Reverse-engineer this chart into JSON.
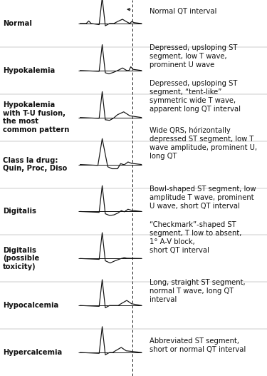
{
  "background_color": "#ffffff",
  "line_color": "#111111",
  "label_fontsize": 7.2,
  "desc_fontsize": 7.2,
  "rows": [
    {
      "label": "Normal",
      "desc_lines": [
        "Depressed, upsloping ST",
        "segment, low T wave,",
        "prominent U wave"
      ],
      "ecg_type": "hypokalemia"
    },
    {
      "label": "Hypokalemia",
      "desc_lines": [
        "Depressed, upsloping ST",
        "segment, “tent-like”",
        "symmetric wide T wave,",
        "apparent long QT interval"
      ],
      "ecg_type": "hypokalemia_tu"
    },
    {
      "label": "Hypokalemia\nwith T-U fusion,\nthe most\ncommon pattern",
      "desc_lines": [
        "Wide QRS, hórizontally",
        "depressed ST segment, low T",
        "wave amplitude, prominent U,",
        "long QT"
      ],
      "ecg_type": "class_ia"
    },
    {
      "label": "Class Ia drug:\nQuin, Proc, Diso",
      "desc_lines": [
        "Bowl-shaped ST segment, low",
        "amplitude T wave, prominent",
        "U wave, short QT interval"
      ],
      "ecg_type": "digitalis"
    },
    {
      "label": "Digitalis",
      "desc_lines": [
        "“Checkmark”-shaped ST",
        "segment, T low to absent,",
        "1° A-V block,",
        "short QT interval"
      ],
      "ecg_type": "digitalis_toxic"
    },
    {
      "label": "Digitalis\n(possible\ntoxicity)",
      "desc_lines": [
        "Long, straight ST segment,",
        "normal T wave, long QT",
        "interval"
      ],
      "ecg_type": "hypocalcemia"
    },
    {
      "label": "Hypocalcemia",
      "desc_lines": [
        "Abbreviated ST segment,",
        "short or normal QT interval"
      ],
      "ecg_type": "hypercalcemia"
    },
    {
      "label": "Hypercalcemia",
      "desc_lines": [],
      "ecg_type": "none"
    }
  ]
}
